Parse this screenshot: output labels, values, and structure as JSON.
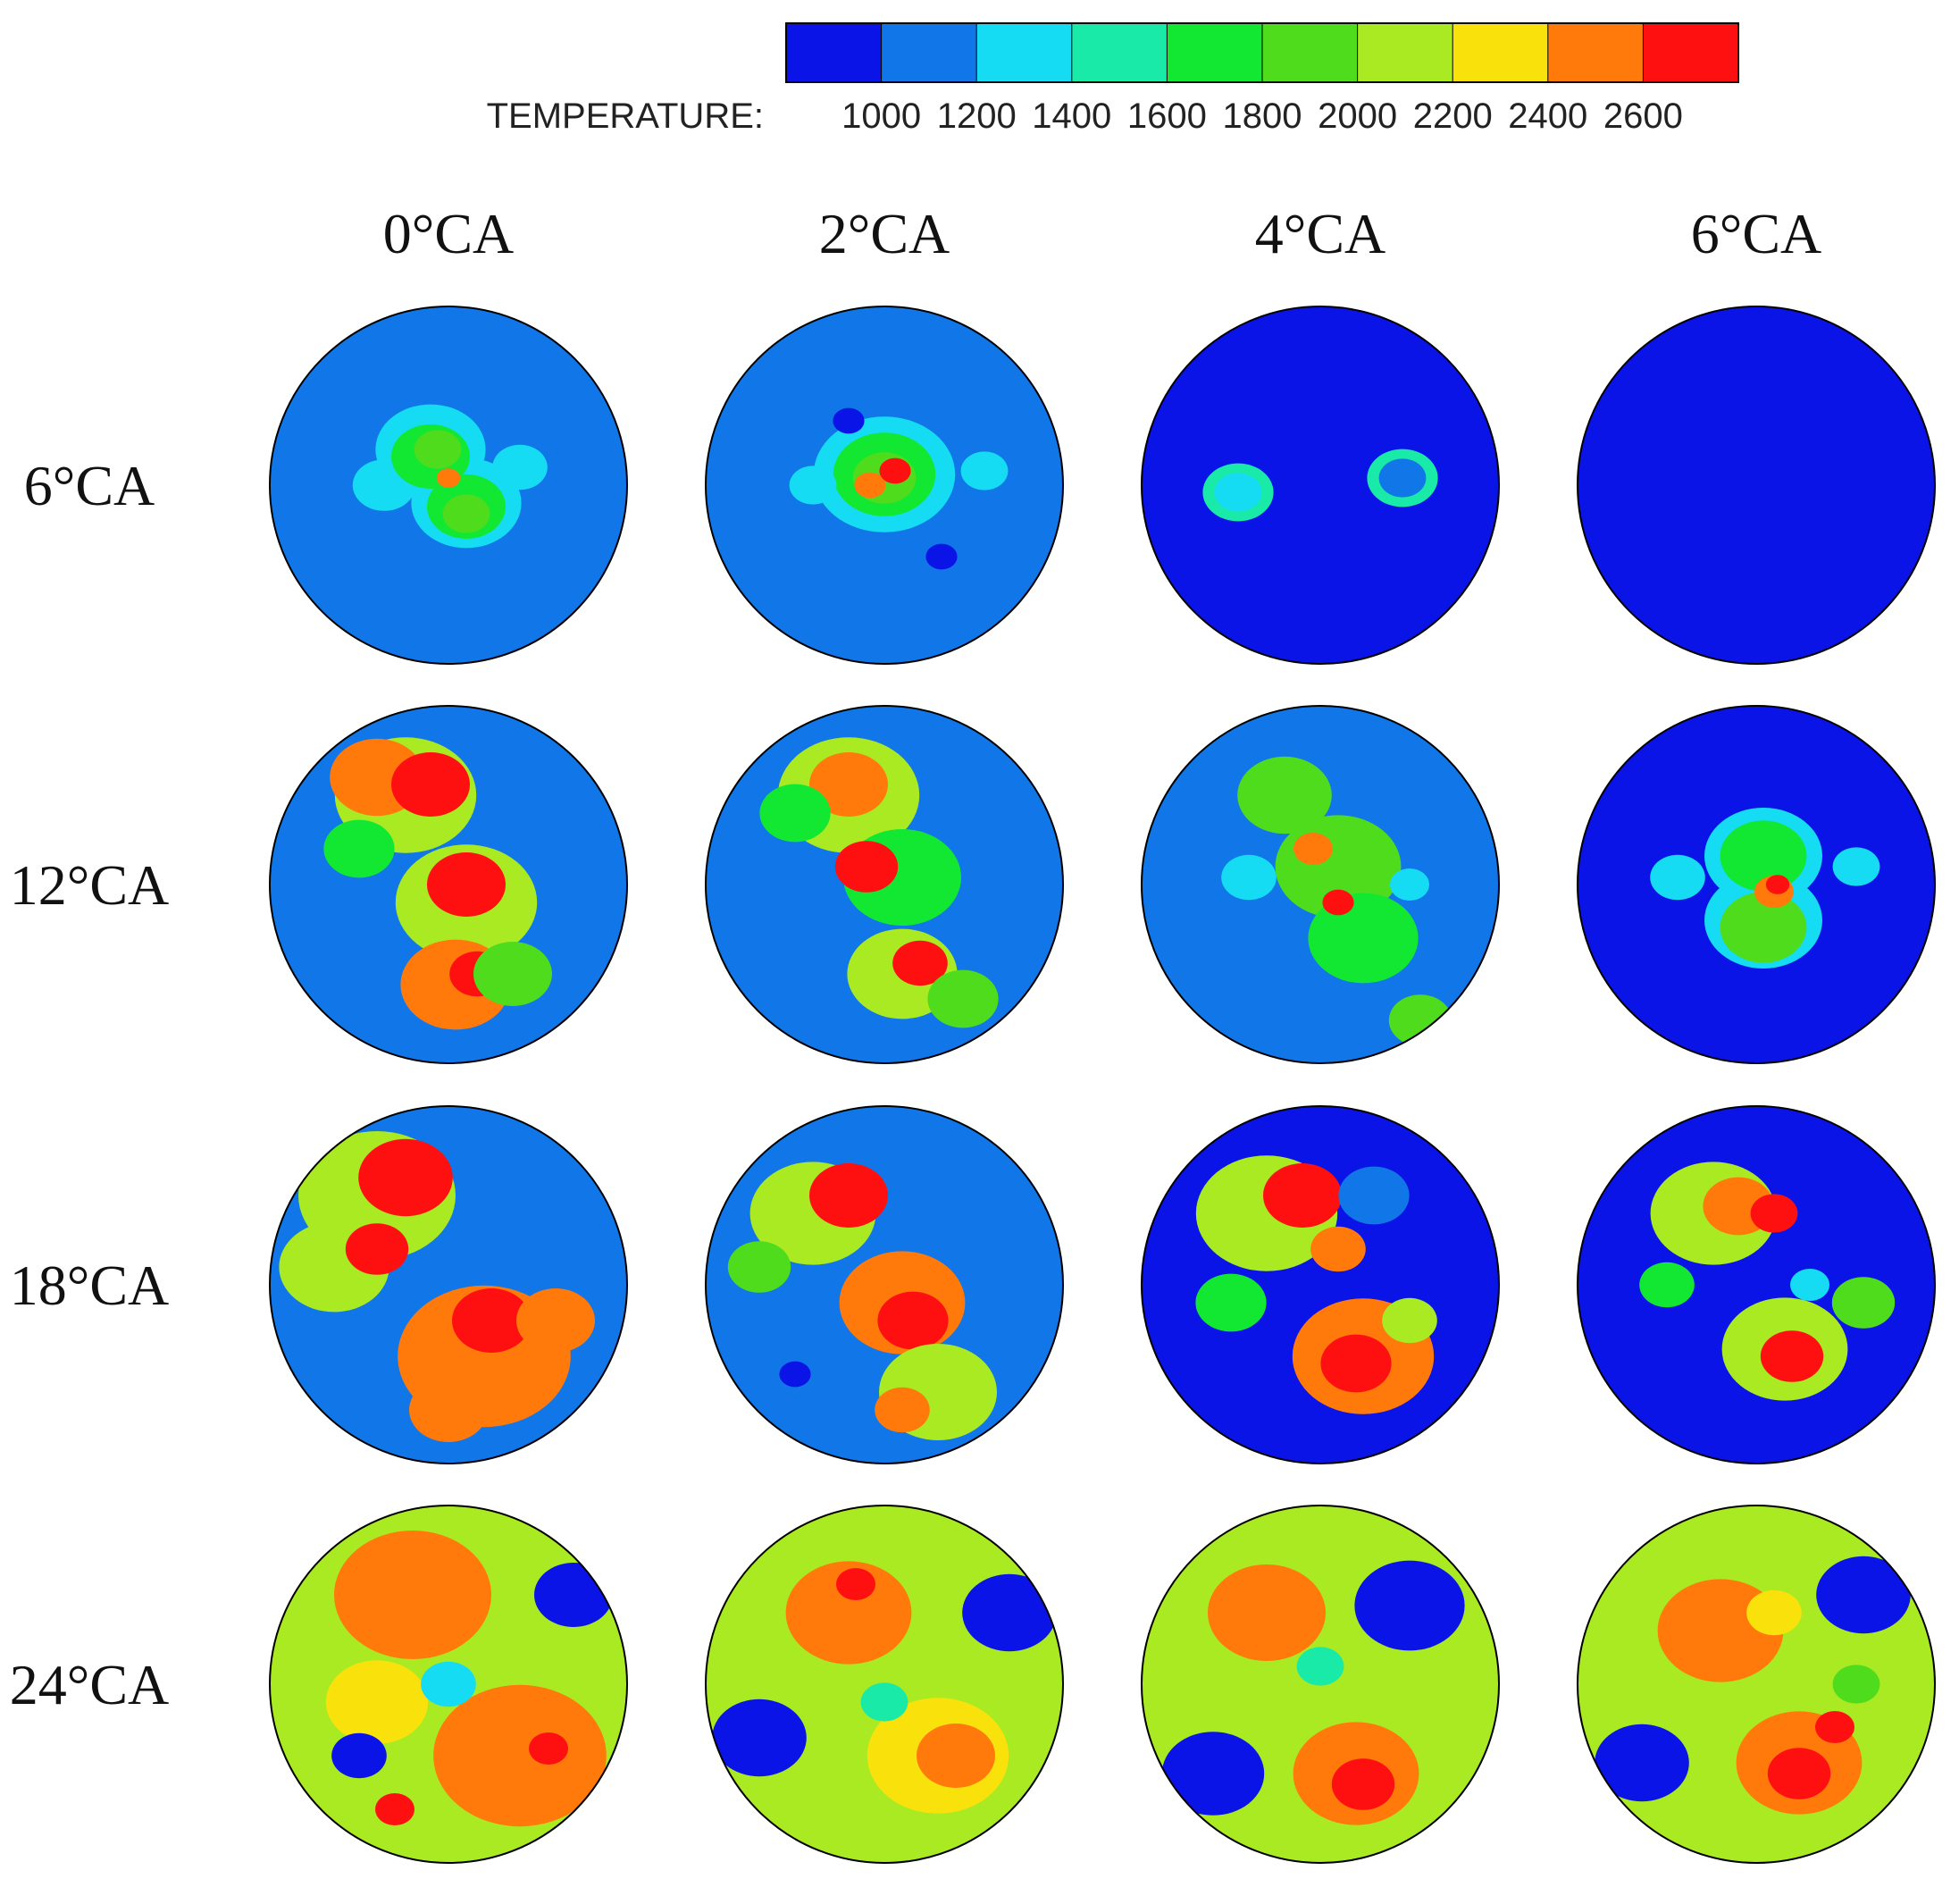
{
  "legend": {
    "title": "TEMPERATURE:",
    "ticks": [
      "1000",
      "1200",
      "1400",
      "1600",
      "1800",
      "2000",
      "2200",
      "2400",
      "2600"
    ],
    "colors": [
      "#0a14e6",
      "#1177e8",
      "#15dcf2",
      "#19eaa8",
      "#12e832",
      "#4fdc1c",
      "#a9ea22",
      "#f9e20c",
      "#ff7a0a",
      "#ff1010"
    ]
  },
  "columns": [
    "0°CA",
    "2°CA",
    "4°CA",
    "6°CA"
  ],
  "rows": [
    "6°CA",
    "12°CA",
    "18°CA",
    "24°CA"
  ],
  "grid": [
    [
      {
        "base": "#1177e8",
        "blobs": [
          [
            0.45,
            0.4,
            0.14,
            "#15dcf2"
          ],
          [
            0.55,
            0.55,
            0.14,
            "#15dcf2"
          ],
          [
            0.32,
            0.5,
            0.08,
            "#15dcf2"
          ],
          [
            0.7,
            0.45,
            0.07,
            "#15dcf2"
          ],
          [
            0.45,
            0.42,
            0.1,
            "#12e832"
          ],
          [
            0.55,
            0.56,
            0.1,
            "#12e832"
          ],
          [
            0.47,
            0.4,
            0.06,
            "#4fdc1c"
          ],
          [
            0.55,
            0.58,
            0.06,
            "#4fdc1c"
          ],
          [
            0.5,
            0.48,
            0.03,
            "#ff7a0a"
          ]
        ]
      },
      {
        "base": "#1177e8",
        "blobs": [
          [
            0.5,
            0.47,
            0.18,
            "#15dcf2"
          ],
          [
            0.5,
            0.47,
            0.13,
            "#12e832"
          ],
          [
            0.3,
            0.5,
            0.06,
            "#15dcf2"
          ],
          [
            0.78,
            0.46,
            0.06,
            "#15dcf2"
          ],
          [
            0.5,
            0.48,
            0.08,
            "#4fdc1c"
          ],
          [
            0.46,
            0.5,
            0.04,
            "#ff7a0a"
          ],
          [
            0.53,
            0.46,
            0.04,
            "#ff1010"
          ],
          [
            0.4,
            0.32,
            0.04,
            "#0a14e6"
          ],
          [
            0.66,
            0.7,
            0.04,
            "#0a14e6"
          ]
        ]
      },
      {
        "base": "#0a14e6",
        "blobs": [
          [
            0.27,
            0.52,
            0.09,
            "#19eaa8"
          ],
          [
            0.73,
            0.48,
            0.09,
            "#19eaa8"
          ],
          [
            0.27,
            0.52,
            0.06,
            "#15dcf2"
          ],
          [
            0.73,
            0.48,
            0.06,
            "#1177e8"
          ]
        ]
      },
      {
        "base": "#0a14e6",
        "blobs": []
      }
    ],
    [
      {
        "base": "#1177e8",
        "blobs": [
          [
            0.38,
            0.25,
            0.18,
            "#a9ea22"
          ],
          [
            0.3,
            0.2,
            0.12,
            "#ff7a0a"
          ],
          [
            0.45,
            0.22,
            0.1,
            "#ff1010"
          ],
          [
            0.55,
            0.55,
            0.18,
            "#a9ea22"
          ],
          [
            0.55,
            0.5,
            0.1,
            "#ff1010"
          ],
          [
            0.52,
            0.78,
            0.14,
            "#ff7a0a"
          ],
          [
            0.58,
            0.75,
            0.07,
            "#ff1010"
          ],
          [
            0.25,
            0.4,
            0.09,
            "#12e832"
          ],
          [
            0.68,
            0.75,
            0.1,
            "#4fdc1c"
          ]
        ]
      },
      {
        "base": "#1177e8",
        "blobs": [
          [
            0.4,
            0.25,
            0.18,
            "#a9ea22"
          ],
          [
            0.4,
            0.22,
            0.1,
            "#ff7a0a"
          ],
          [
            0.55,
            0.48,
            0.15,
            "#12e832"
          ],
          [
            0.45,
            0.45,
            0.08,
            "#ff1010"
          ],
          [
            0.55,
            0.75,
            0.14,
            "#a9ea22"
          ],
          [
            0.6,
            0.72,
            0.07,
            "#ff1010"
          ],
          [
            0.25,
            0.3,
            0.09,
            "#12e832"
          ],
          [
            0.72,
            0.82,
            0.09,
            "#4fdc1c"
          ]
        ]
      },
      {
        "base": "#1177e8",
        "blobs": [
          [
            0.4,
            0.25,
            0.12,
            "#4fdc1c"
          ],
          [
            0.55,
            0.45,
            0.16,
            "#4fdc1c"
          ],
          [
            0.62,
            0.65,
            0.14,
            "#12e832"
          ],
          [
            0.3,
            0.48,
            0.07,
            "#15dcf2"
          ],
          [
            0.48,
            0.4,
            0.05,
            "#ff7a0a"
          ],
          [
            0.55,
            0.55,
            0.04,
            "#ff1010"
          ],
          [
            0.78,
            0.88,
            0.08,
            "#4fdc1c"
          ],
          [
            0.75,
            0.5,
            0.05,
            "#15dcf2"
          ]
        ]
      },
      {
        "base": "#0a14e6",
        "blobs": [
          [
            0.52,
            0.42,
            0.15,
            "#15dcf2"
          ],
          [
            0.52,
            0.6,
            0.15,
            "#15dcf2"
          ],
          [
            0.52,
            0.42,
            0.11,
            "#12e832"
          ],
          [
            0.52,
            0.62,
            0.11,
            "#4fdc1c"
          ],
          [
            0.28,
            0.48,
            0.07,
            "#15dcf2"
          ],
          [
            0.78,
            0.45,
            0.06,
            "#15dcf2"
          ],
          [
            0.55,
            0.52,
            0.05,
            "#ff7a0a"
          ],
          [
            0.56,
            0.5,
            0.03,
            "#ff1010"
          ]
        ]
      }
    ],
    [
      {
        "base": "#1177e8",
        "blobs": [
          [
            0.3,
            0.25,
            0.2,
            "#a9ea22"
          ],
          [
            0.38,
            0.2,
            0.12,
            "#ff1010"
          ],
          [
            0.18,
            0.45,
            0.14,
            "#a9ea22"
          ],
          [
            0.3,
            0.4,
            0.08,
            "#ff1010"
          ],
          [
            0.6,
            0.7,
            0.22,
            "#ff7a0a"
          ],
          [
            0.62,
            0.6,
            0.1,
            "#ff1010"
          ],
          [
            0.5,
            0.85,
            0.1,
            "#ff7a0a"
          ],
          [
            0.8,
            0.6,
            0.1,
            "#ff7a0a"
          ]
        ]
      },
      {
        "base": "#1177e8",
        "blobs": [
          [
            0.3,
            0.3,
            0.16,
            "#a9ea22"
          ],
          [
            0.4,
            0.25,
            0.1,
            "#ff1010"
          ],
          [
            0.55,
            0.55,
            0.16,
            "#ff7a0a"
          ],
          [
            0.58,
            0.6,
            0.09,
            "#ff1010"
          ],
          [
            0.65,
            0.8,
            0.15,
            "#a9ea22"
          ],
          [
            0.55,
            0.85,
            0.07,
            "#ff7a0a"
          ],
          [
            0.15,
            0.45,
            0.08,
            "#4fdc1c"
          ],
          [
            0.25,
            0.75,
            0.04,
            "#0a14e6"
          ]
        ]
      },
      {
        "base": "#0a14e6",
        "blobs": [
          [
            0.35,
            0.3,
            0.18,
            "#a9ea22"
          ],
          [
            0.45,
            0.25,
            0.1,
            "#ff1010"
          ],
          [
            0.55,
            0.4,
            0.07,
            "#ff7a0a"
          ],
          [
            0.62,
            0.7,
            0.18,
            "#ff7a0a"
          ],
          [
            0.6,
            0.72,
            0.09,
            "#ff1010"
          ],
          [
            0.25,
            0.55,
            0.09,
            "#12e832"
          ],
          [
            0.75,
            0.6,
            0.07,
            "#a9ea22"
          ],
          [
            0.65,
            0.25,
            0.09,
            "#1177e8"
          ]
        ]
      },
      {
        "base": "#0a14e6",
        "blobs": [
          [
            0.38,
            0.3,
            0.16,
            "#a9ea22"
          ],
          [
            0.45,
            0.28,
            0.09,
            "#ff7a0a"
          ],
          [
            0.55,
            0.3,
            0.06,
            "#ff1010"
          ],
          [
            0.58,
            0.68,
            0.16,
            "#a9ea22"
          ],
          [
            0.6,
            0.7,
            0.08,
            "#ff1010"
          ],
          [
            0.25,
            0.5,
            0.07,
            "#12e832"
          ],
          [
            0.8,
            0.55,
            0.08,
            "#4fdc1c"
          ],
          [
            0.65,
            0.5,
            0.05,
            "#15dcf2"
          ]
        ]
      }
    ],
    [
      {
        "base": "#a9ea22",
        "blobs": [
          [
            0.4,
            0.25,
            0.2,
            "#ff7a0a"
          ],
          [
            0.7,
            0.7,
            0.22,
            "#ff7a0a"
          ],
          [
            0.3,
            0.55,
            0.13,
            "#f9e20c"
          ],
          [
            0.5,
            0.5,
            0.07,
            "#15dcf2"
          ],
          [
            0.85,
            0.25,
            0.1,
            "#0a14e6"
          ],
          [
            0.25,
            0.7,
            0.07,
            "#0a14e6"
          ],
          [
            0.78,
            0.68,
            0.05,
            "#ff1010"
          ],
          [
            0.35,
            0.85,
            0.05,
            "#ff1010"
          ]
        ]
      },
      {
        "base": "#a9ea22",
        "blobs": [
          [
            0.4,
            0.3,
            0.16,
            "#ff7a0a"
          ],
          [
            0.65,
            0.7,
            0.18,
            "#f9e20c"
          ],
          [
            0.7,
            0.7,
            0.1,
            "#ff7a0a"
          ],
          [
            0.15,
            0.65,
            0.12,
            "#0a14e6"
          ],
          [
            0.85,
            0.3,
            0.12,
            "#0a14e6"
          ],
          [
            0.5,
            0.55,
            0.06,
            "#19eaa8"
          ],
          [
            0.42,
            0.22,
            0.05,
            "#ff1010"
          ]
        ]
      },
      {
        "base": "#a9ea22",
        "blobs": [
          [
            0.35,
            0.3,
            0.15,
            "#ff7a0a"
          ],
          [
            0.6,
            0.75,
            0.16,
            "#ff7a0a"
          ],
          [
            0.62,
            0.78,
            0.08,
            "#ff1010"
          ],
          [
            0.75,
            0.28,
            0.14,
            "#0a14e6"
          ],
          [
            0.2,
            0.75,
            0.13,
            "#0a14e6"
          ],
          [
            0.5,
            0.45,
            0.06,
            "#19eaa8"
          ]
        ]
      },
      {
        "base": "#a9ea22",
        "blobs": [
          [
            0.4,
            0.35,
            0.16,
            "#ff7a0a"
          ],
          [
            0.55,
            0.3,
            0.07,
            "#f9e20c"
          ],
          [
            0.62,
            0.72,
            0.16,
            "#ff7a0a"
          ],
          [
            0.62,
            0.75,
            0.08,
            "#ff1010"
          ],
          [
            0.72,
            0.62,
            0.05,
            "#ff1010"
          ],
          [
            0.8,
            0.25,
            0.12,
            "#0a14e6"
          ],
          [
            0.18,
            0.72,
            0.12,
            "#0a14e6"
          ],
          [
            0.78,
            0.5,
            0.06,
            "#4fdc1c"
          ]
        ]
      }
    ]
  ]
}
